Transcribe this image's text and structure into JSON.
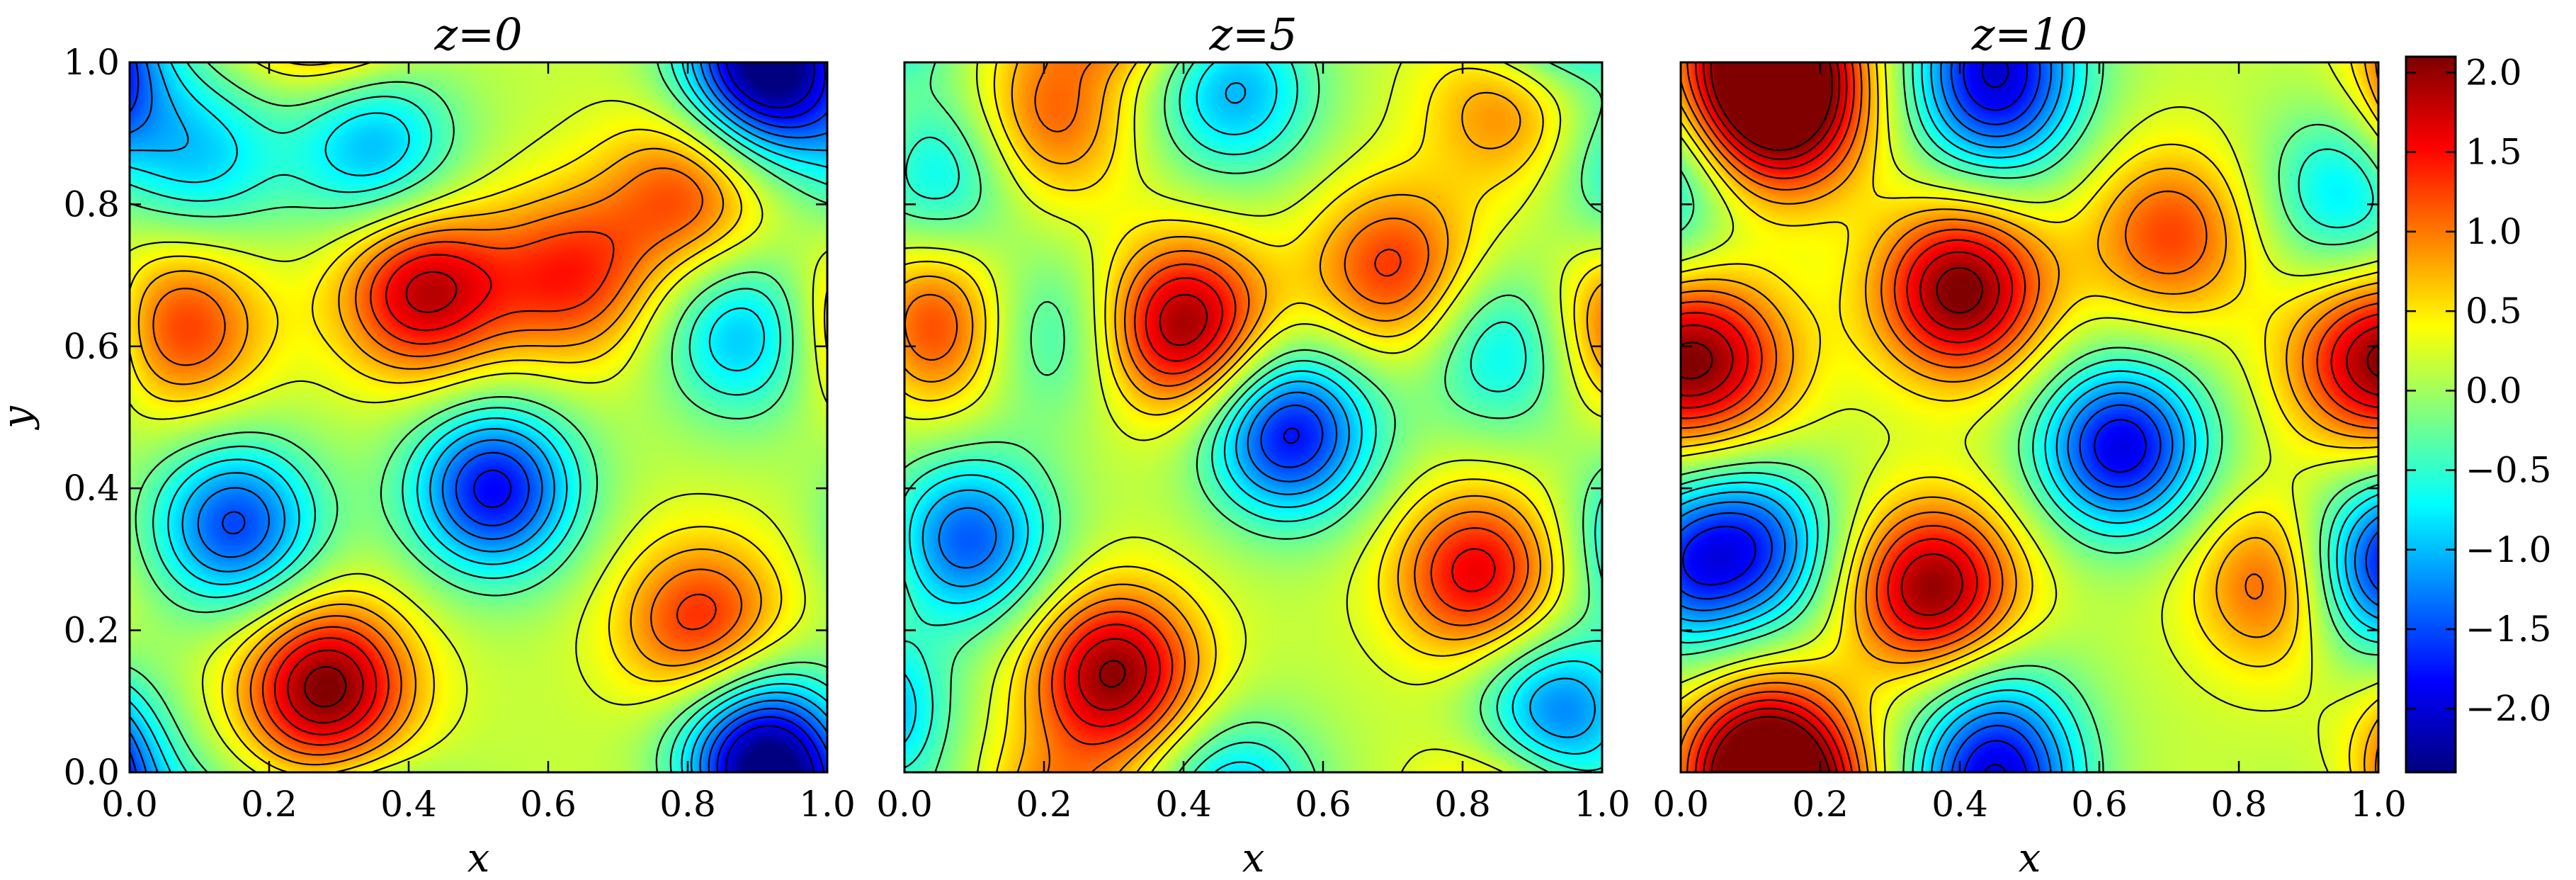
{
  "chart_data": {
    "type": "heatmap",
    "panels": [
      {
        "title": "z=0",
        "xlabel": "x",
        "ylabel": "y",
        "xlim": [
          0.0,
          1.0
        ],
        "ylim": [
          0.0,
          1.0
        ],
        "xticks": [
          "0.0",
          "0.2",
          "0.4",
          "0.6",
          "0.8",
          "1.0"
        ],
        "yticks": [
          "0.0",
          "0.2",
          "0.4",
          "0.6",
          "0.8",
          "1.0"
        ],
        "features": [
          {
            "x": 0.28,
            "y": 0.12,
            "value": 2.0
          },
          {
            "x": 0.82,
            "y": 0.21,
            "value": 1.3
          },
          {
            "x": 0.63,
            "y": 0.7,
            "value": 1.2
          },
          {
            "x": 0.07,
            "y": 0.63,
            "value": 1.2
          },
          {
            "x": 0.8,
            "y": 0.82,
            "value": 1.1
          },
          {
            "x": 0.42,
            "y": 0.68,
            "value": 1.7
          },
          {
            "x": 0.52,
            "y": 0.4,
            "value": -2.0
          },
          {
            "x": 0.15,
            "y": 0.35,
            "value": -1.7
          },
          {
            "x": 0.92,
            "y": 0.97,
            "value": -1.8
          },
          {
            "x": 0.35,
            "y": 0.88,
            "value": -1.2
          },
          {
            "x": 0.1,
            "y": 0.87,
            "value": -1.0
          },
          {
            "x": 0.88,
            "y": 0.62,
            "value": -1.2
          },
          {
            "x": 0.9,
            "y": 0.05,
            "value": -1.4
          }
        ]
      },
      {
        "title": "z=5",
        "xlabel": "x",
        "ylabel": "",
        "xlim": [
          0.0,
          1.0
        ],
        "ylim": [
          0.0,
          1.0
        ],
        "xticks": [
          "0.0",
          "0.2",
          "0.4",
          "0.6",
          "0.8",
          "1.0"
        ],
        "yticks": [],
        "features": [
          {
            "x": 0.3,
            "y": 0.14,
            "value": 1.9
          },
          {
            "x": 0.4,
            "y": 0.63,
            "value": 1.9
          },
          {
            "x": 0.82,
            "y": 0.28,
            "value": 1.5
          },
          {
            "x": 0.7,
            "y": 0.71,
            "value": 1.2
          },
          {
            "x": 0.04,
            "y": 0.63,
            "value": 1.3
          },
          {
            "x": 0.2,
            "y": 0.92,
            "value": 1.0
          },
          {
            "x": 0.87,
            "y": 0.95,
            "value": 1.0
          },
          {
            "x": 0.55,
            "y": 0.48,
            "value": -2.0
          },
          {
            "x": 0.09,
            "y": 0.33,
            "value": -1.6
          },
          {
            "x": 0.47,
            "y": 0.96,
            "value": -1.2
          },
          {
            "x": 0.93,
            "y": 0.08,
            "value": -1.6
          },
          {
            "x": 0.86,
            "y": 0.6,
            "value": -1.0
          },
          {
            "x": 0.2,
            "y": 0.62,
            "value": -0.8
          },
          {
            "x": 0.05,
            "y": 0.85,
            "value": -1.0
          }
        ]
      },
      {
        "title": "z=10",
        "xlabel": "x",
        "ylabel": "",
        "xlim": [
          0.0,
          1.0
        ],
        "ylim": [
          0.0,
          1.0
        ],
        "xticks": [
          "0.0",
          "0.2",
          "0.4",
          "0.6",
          "0.8",
          "1.0"
        ],
        "yticks": [],
        "features": [
          {
            "x": 0.4,
            "y": 0.68,
            "value": 2.0
          },
          {
            "x": 0.36,
            "y": 0.26,
            "value": 1.9
          },
          {
            "x": 0.14,
            "y": 0.93,
            "value": 1.8
          },
          {
            "x": 0.12,
            "y": 0.02,
            "value": 1.9
          },
          {
            "x": 0.7,
            "y": 0.76,
            "value": 1.1
          },
          {
            "x": 0.87,
            "y": 0.27,
            "value": 1.6
          },
          {
            "x": 0.05,
            "y": 0.58,
            "value": 1.2
          },
          {
            "x": 0.97,
            "y": 0.58,
            "value": 1.0
          },
          {
            "x": 0.63,
            "y": 0.46,
            "value": -2.1
          },
          {
            "x": 0.45,
            "y": 0.95,
            "value": -1.6
          },
          {
            "x": 0.1,
            "y": 0.32,
            "value": -1.6
          },
          {
            "x": 0.96,
            "y": 0.28,
            "value": -1.8
          },
          {
            "x": 0.95,
            "y": 0.82,
            "value": -1.0
          },
          {
            "x": 0.45,
            "y": 0.06,
            "value": -1.1
          }
        ]
      }
    ],
    "colorbar": {
      "vmin": -2.4,
      "vmax": 2.1,
      "ticks": [
        2.0,
        1.5,
        1.0,
        0.5,
        0.0,
        -0.5,
        -1.0,
        -1.5,
        -2.0
      ],
      "tick_labels": [
        "2.0",
        "1.5",
        "1.0",
        "0.5",
        "0.0",
        "−0.5",
        "−1.0",
        "−1.5",
        "−2.0"
      ],
      "colormap": "jet"
    },
    "contours": {
      "positive": "solid black",
      "negative": "dashed black"
    }
  }
}
